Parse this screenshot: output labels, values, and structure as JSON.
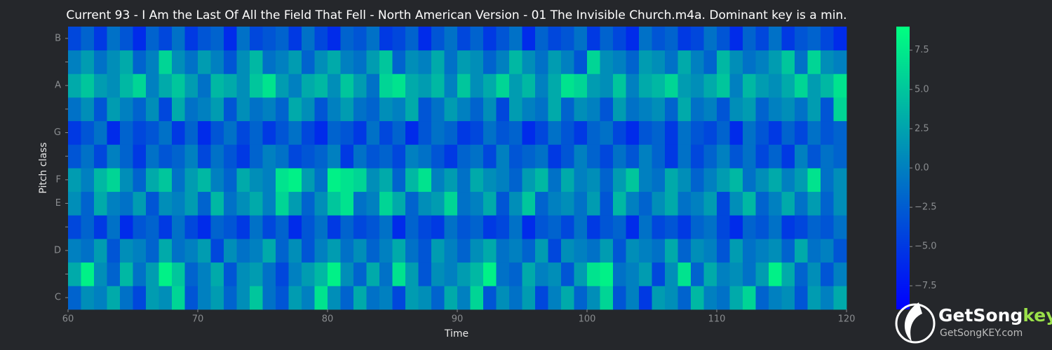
{
  "chart_data": {
    "type": "heatmap",
    "title": "Current 93 - I Am the Last Of All the Field That Fell - North American Version - 01 The Invisible Church.m4a. Dominant key is a min.",
    "xlabel": "Time",
    "ylabel": "Pitch class",
    "xlim": [
      60,
      120
    ],
    "xticks": [
      60,
      70,
      80,
      90,
      100,
      110,
      120
    ],
    "rows": [
      "C",
      null,
      "D",
      null,
      "E",
      "F",
      null,
      "G",
      null,
      "A",
      null,
      "B"
    ],
    "colormap": [
      "#0000ff",
      "#00ff80"
    ],
    "zlim": [
      -9,
      9
    ],
    "zticks": [
      {
        "value": -7.5,
        "label": "−7.5"
      },
      {
        "value": -5,
        "label": "−5.0"
      },
      {
        "value": -2.5,
        "label": "−2.5"
      },
      {
        "value": 0,
        "label": "0.0"
      },
      2.5,
      {
        "value": 5,
        "label": "5.0"
      },
      7.5
    ],
    "z": [
      [
        -2,
        1,
        0,
        3,
        -1,
        -4,
        2,
        1,
        6,
        -3,
        0,
        2,
        -2,
        1,
        5,
        -1,
        -3,
        2,
        0,
        7,
        1,
        -2,
        3,
        -1,
        0,
        -4,
        2,
        1,
        -2,
        3,
        0,
        6,
        -3,
        1,
        -1,
        2,
        -4,
        0,
        3,
        -2,
        1,
        6,
        -3,
        0,
        -5,
        2,
        1,
        -2,
        4,
        0,
        -1,
        3,
        6,
        -2,
        0,
        1,
        -3,
        2,
        0,
        3
      ],
      [
        3,
        8,
        1,
        -2,
        4,
        -1,
        2,
        8,
        5,
        -2,
        0,
        3,
        -3,
        1,
        2,
        -1,
        -4,
        0,
        2,
        4,
        8,
        1,
        -2,
        3,
        -1,
        7,
        2,
        -3,
        1,
        0,
        2,
        4,
        8,
        -1,
        -2,
        3,
        0,
        1,
        -3,
        2,
        7,
        8,
        -1,
        0,
        2,
        -4,
        1,
        7,
        -2,
        3,
        0,
        1,
        -1,
        2,
        8,
        3,
        -2,
        1,
        -3,
        0
      ],
      [
        0,
        -1,
        2,
        -3,
        1,
        0,
        -2,
        3,
        -1,
        0,
        2,
        -4,
        1,
        -1,
        0,
        3,
        -2,
        1,
        -3,
        0,
        2,
        -1,
        1,
        -2,
        0,
        3,
        -1,
        -3,
        2,
        0,
        -2,
        1,
        3,
        -1,
        0,
        -2,
        2,
        -4,
        1,
        0,
        -1,
        2,
        -3,
        1,
        0,
        -1,
        3,
        -2,
        1,
        0,
        -3,
        2,
        -1,
        0,
        1,
        -2,
        3,
        -1,
        0,
        -3
      ],
      [
        -4,
        -2,
        -5,
        -1,
        -6,
        -3,
        -2,
        -5,
        -1,
        -4,
        -6,
        -2,
        -3,
        -5,
        -1,
        -4,
        -2,
        -6,
        -3,
        -1,
        -5,
        -2,
        -4,
        -3,
        -1,
        -6,
        -2,
        -4,
        -5,
        -1,
        -3,
        -2,
        -5,
        -4,
        -1,
        -6,
        -3,
        -2,
        -4,
        -1,
        -5,
        -3,
        -2,
        -6,
        -1,
        -4,
        -3,
        -5,
        -2,
        -1,
        -4,
        -6,
        -2,
        -3,
        -1,
        -5,
        -4,
        -2,
        -3,
        -1
      ],
      [
        1,
        -2,
        3,
        0,
        -1,
        2,
        -3,
        1,
        0,
        2,
        -2,
        4,
        -1,
        1,
        3,
        0,
        6,
        2,
        -2,
        1,
        5,
        7,
        -1,
        0,
        6,
        3,
        -2,
        1,
        2,
        6,
        -1,
        0,
        3,
        -3,
        1,
        5,
        -2,
        0,
        1,
        -1,
        2,
        -3,
        4,
        0,
        -2,
        1,
        3,
        -1,
        0,
        2,
        -4,
        1,
        4,
        -2,
        0,
        3,
        -1,
        2,
        -2,
        1
      ],
      [
        2,
        0,
        4,
        6,
        1,
        -2,
        3,
        5,
        -1,
        2,
        4,
        0,
        -2,
        3,
        1,
        0,
        7,
        8,
        2,
        -1,
        8,
        7,
        6,
        1,
        3,
        -2,
        4,
        7,
        0,
        2,
        -1,
        3,
        1,
        0,
        -2,
        2,
        4,
        -1,
        3,
        0,
        1,
        -2,
        2,
        5,
        0,
        -1,
        3,
        1,
        -2,
        0,
        2,
        4,
        -1,
        1,
        3,
        0,
        2,
        7,
        -1,
        1
      ],
      [
        -3,
        -1,
        -4,
        0,
        -2,
        -5,
        -1,
        -3,
        -2,
        0,
        -4,
        -1,
        -3,
        -5,
        -2,
        0,
        -1,
        -4,
        -3,
        -2,
        0,
        -5,
        -1,
        -3,
        -2,
        -4,
        0,
        -1,
        -3,
        -5,
        -2,
        -1,
        -4,
        0,
        -3,
        -2,
        -1,
        -5,
        -3,
        0,
        -2,
        -4,
        -1,
        -3,
        0,
        -2,
        -5,
        -1,
        -4,
        -2,
        0,
        -3,
        -1,
        -4,
        -2,
        -5,
        0,
        -3,
        -1,
        -2
      ],
      [
        -5,
        -3,
        -1,
        -6,
        -2,
        -4,
        -3,
        -1,
        -5,
        -2,
        -6,
        -3,
        -1,
        -4,
        -2,
        -5,
        -3,
        -1,
        -4,
        -6,
        -2,
        -3,
        -5,
        -1,
        -4,
        -2,
        -6,
        -3,
        -1,
        -2,
        -5,
        -4,
        -1,
        -3,
        -2,
        -6,
        -4,
        -1,
        -3,
        -5,
        -2,
        -1,
        -4,
        -6,
        -3,
        -2,
        -5,
        -1,
        -3,
        -4,
        -2,
        -6,
        -1,
        -3,
        -5,
        -2,
        -4,
        -1,
        -3,
        -2
      ],
      [
        -1,
        1,
        -3,
        2,
        0,
        -2,
        1,
        -4,
        3,
        -1,
        0,
        2,
        -3,
        1,
        -1,
        0,
        -2,
        3,
        1,
        -3,
        0,
        2,
        -1,
        -2,
        1,
        0,
        3,
        -3,
        -1,
        2,
        0,
        -2,
        1,
        -4,
        2,
        0,
        -1,
        3,
        -2,
        1,
        0,
        -3,
        2,
        -1,
        0,
        1,
        -2,
        3,
        -1,
        0,
        -3,
        1,
        2,
        -2,
        0,
        1,
        -1,
        2,
        -3,
        6
      ],
      [
        3,
        5,
        2,
        1,
        4,
        6,
        0,
        3,
        5,
        2,
        -1,
        4,
        3,
        1,
        5,
        7,
        2,
        0,
        3,
        4,
        1,
        5,
        2,
        -1,
        6,
        7,
        3,
        2,
        4,
        0,
        5,
        1,
        3,
        6,
        2,
        4,
        0,
        3,
        7,
        6,
        2,
        1,
        5,
        0,
        3,
        4,
        6,
        2,
        1,
        3,
        5,
        0,
        4,
        2,
        1,
        3,
        6,
        2,
        4,
        7
      ],
      [
        0,
        2,
        -1,
        1,
        3,
        -2,
        0,
        6,
        1,
        -1,
        2,
        0,
        -3,
        1,
        4,
        -1,
        0,
        2,
        -2,
        1,
        3,
        0,
        -1,
        2,
        5,
        -2,
        1,
        0,
        3,
        -1,
        2,
        1,
        -2,
        0,
        4,
        1,
        -1,
        2,
        0,
        -3,
        6,
        1,
        0,
        -2,
        2,
        1,
        -1,
        3,
        0,
        -2,
        4,
        1,
        -1,
        0,
        2,
        5,
        -1,
        6,
        1,
        0
      ],
      [
        -4,
        -2,
        -5,
        -1,
        -3,
        -6,
        -2,
        -4,
        -1,
        -5,
        -3,
        -2,
        -6,
        -1,
        -4,
        -3,
        -2,
        -5,
        -1,
        -4,
        -6,
        -2,
        -3,
        -1,
        -5,
        -4,
        -2,
        -6,
        -3,
        -1,
        -4,
        -2,
        -5,
        -3,
        -1,
        -6,
        -2,
        -4,
        -3,
        -1,
        -5,
        -2,
        -4,
        -6,
        -1,
        -3,
        -2,
        -5,
        -4,
        -1,
        -3,
        -6,
        -2,
        -4,
        -1,
        -5,
        -3,
        -2,
        -4,
        -6
      ]
    ]
  },
  "watermark": {
    "brand": "GetSong",
    "brand_accent": "key",
    "site": "GetSongKEY.com"
  }
}
